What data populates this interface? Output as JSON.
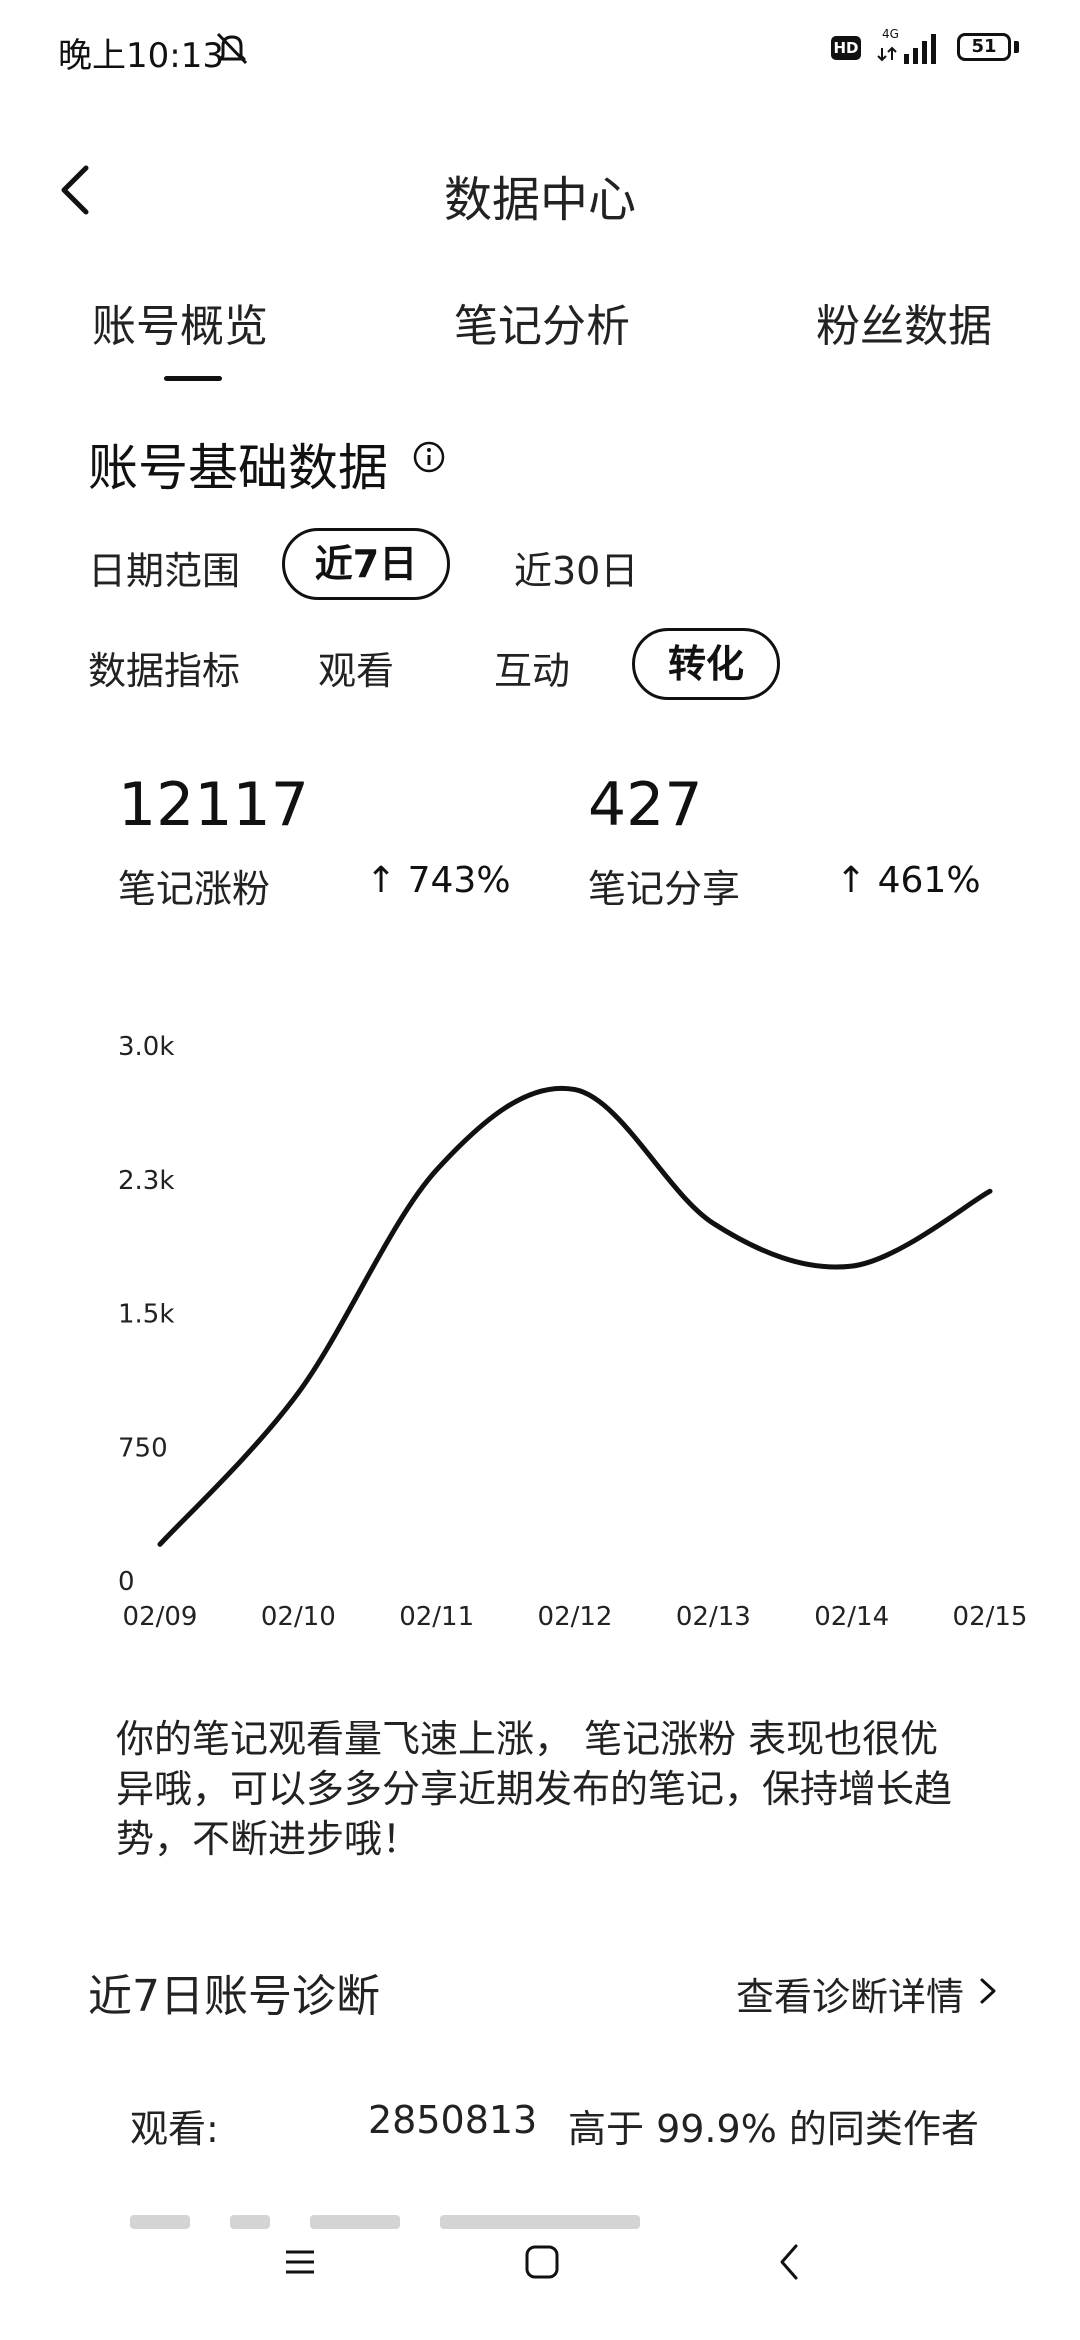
{
  "status_bar": {
    "time": "晚上10:13",
    "hd_badge": "HD",
    "network_label": "4G",
    "battery": "51"
  },
  "header": {
    "title": "数据中心"
  },
  "tabs": [
    {
      "label": "账号概览",
      "active": true
    },
    {
      "label": "笔记分析",
      "active": false
    },
    {
      "label": "粉丝数据",
      "active": false
    }
  ],
  "section": {
    "title": "账号基础数据"
  },
  "date_range": {
    "label": "日期范围",
    "options": [
      "近7日",
      "近30日"
    ],
    "selected": "近7日"
  },
  "metrics_filter": {
    "label": "数据指标",
    "options": [
      "观看",
      "互动",
      "转化"
    ],
    "selected": "转化"
  },
  "metrics": [
    {
      "value": "12117",
      "label": "笔记涨粉",
      "change": "↑ 743%"
    },
    {
      "value": "427",
      "label": "笔记分享",
      "change": "↑ 461%"
    }
  ],
  "chart_data": {
    "type": "line",
    "x": [
      "02/09",
      "02/10",
      "02/11",
      "02/12",
      "02/13",
      "02/14",
      "02/15"
    ],
    "series": [
      {
        "values": [
          200,
          1050,
          2300,
          2750,
          2000,
          1760,
          2180
        ]
      }
    ],
    "y_ticks": [
      "0",
      "750",
      "1.5k",
      "2.3k",
      "3.0k"
    ],
    "ylim": [
      0,
      3000
    ],
    "grid": false,
    "line_color": "#111111"
  },
  "summary": "你的笔记观看量飞速上涨， 笔记涨粉 表现也很优异哦，可以多多分享近期发布的笔记，保持增长趋势，不断进步哦！",
  "diagnosis": {
    "title": "近7日账号诊断",
    "link": "查看诊断详情",
    "rows": [
      {
        "label": "观看:",
        "value": "2850813",
        "compare": "高于 99.9% 的同类作者"
      }
    ]
  }
}
